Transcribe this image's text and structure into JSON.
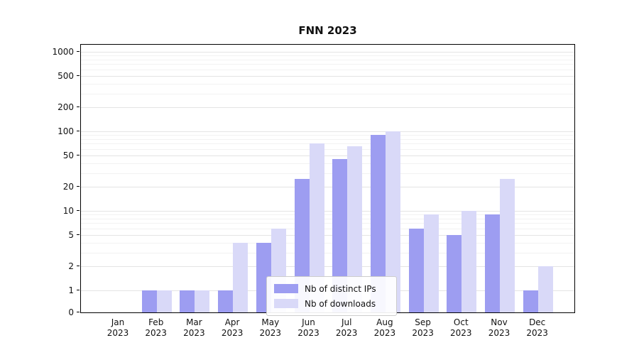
{
  "title": "FNN 2023",
  "chart_data": {
    "type": "bar",
    "title": "FNN 2023",
    "y_scale": "symlog",
    "grid": true,
    "legend_position": "lower center",
    "xlabel": "",
    "ylabel": "",
    "y_ticks": [
      0,
      1,
      2,
      5,
      10,
      20,
      50,
      100,
      200,
      500,
      1000
    ],
    "ylim": [
      0,
      1300
    ],
    "categories": [
      "Jan 2023",
      "Feb 2023",
      "Mar 2023",
      "Apr 2023",
      "May 2023",
      "Jun 2023",
      "Jul 2023",
      "Aug 2023",
      "Sep 2023",
      "Oct 2023",
      "Nov 2023",
      "Dec 2023"
    ],
    "series": [
      {
        "name": "Nb of distinct IPs",
        "color": "#9d9df1",
        "values": [
          0,
          1,
          1,
          1,
          4,
          25,
          45,
          90,
          6,
          5,
          9,
          1
        ]
      },
      {
        "name": "Nb of downloads",
        "color": "#d9d9f8",
        "values": [
          0,
          1,
          1,
          4,
          6,
          70,
          65,
          100,
          9,
          10,
          25,
          2
        ]
      }
    ]
  }
}
